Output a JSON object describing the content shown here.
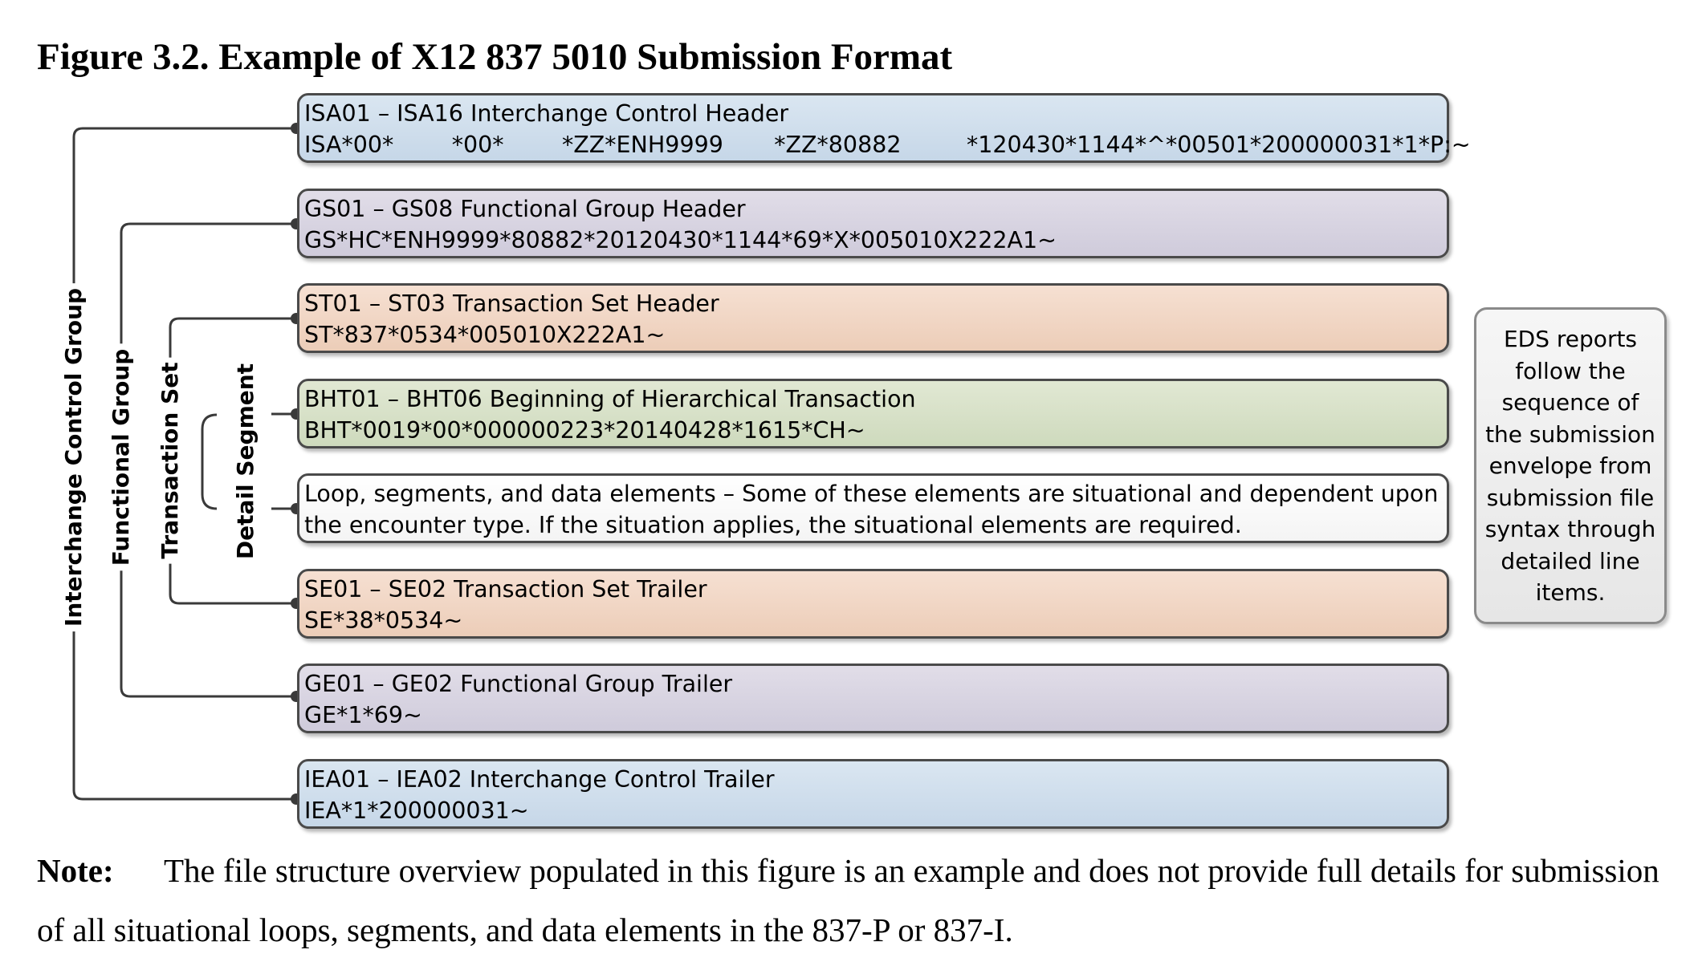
{
  "figure": {
    "title": "Figure 3.2. Example of X12 837 5010 Submission Format"
  },
  "segments": [
    {
      "title": "ISA01 – ISA16 Interchange Control Header",
      "code": "ISA*00*        *00*        *ZZ*ENH9999       *ZZ*80882         *120430*1144*^*00501*200000031*1*P:~",
      "color": "#c6d7e8"
    },
    {
      "title": "GS01 – GS08 Functional Group Header",
      "code": "GS*HC*ENH9999*80882*20120430*1144*69*X*005010X222A1~",
      "color": "#cfcbdb"
    },
    {
      "title": "ST01 – ST03 Transaction Set Header",
      "code": "ST*837*0534*005010X222A1~",
      "color": "#eccdb8"
    },
    {
      "title": "BHT01 – BHT06 Beginning of Hierarchical Transaction",
      "code": "BHT*0019*00*000000223*20140428*1615*CH~",
      "color": "#cedabd"
    },
    {
      "title": "Loop, segments, and data elements – Some of these elements are situational and dependent upon the encounter type. If the situation applies, the situational elements are required.",
      "code": "",
      "color": "#f4f4f4"
    },
    {
      "title": "SE01 – SE02 Transaction Set Trailer",
      "code": "SE*38*0534~",
      "color": "#eccdb8"
    },
    {
      "title": "GE01 – GE02 Functional Group Trailer",
      "code": "GE*1*69~",
      "color": "#cfcbdb"
    },
    {
      "title": "IEA01 – IEA02 Interchange Control Trailer",
      "code": "IEA*1*200000031~",
      "color": "#c6d7e8"
    }
  ],
  "groups": {
    "interchange": "Interchange Control Group",
    "functional": "Functional Group",
    "transaction": "Transaction Set",
    "detail": "Detail Segment"
  },
  "side_note": "EDS reports follow the sequence of the submission envelope from submission file syntax through detailed line items.",
  "note": {
    "label": "Note:",
    "text": "The file structure overview populated in this figure is an example and does not provide full details for submission of all situational loops, segments, and data elements in the 837-P or 837-I."
  }
}
